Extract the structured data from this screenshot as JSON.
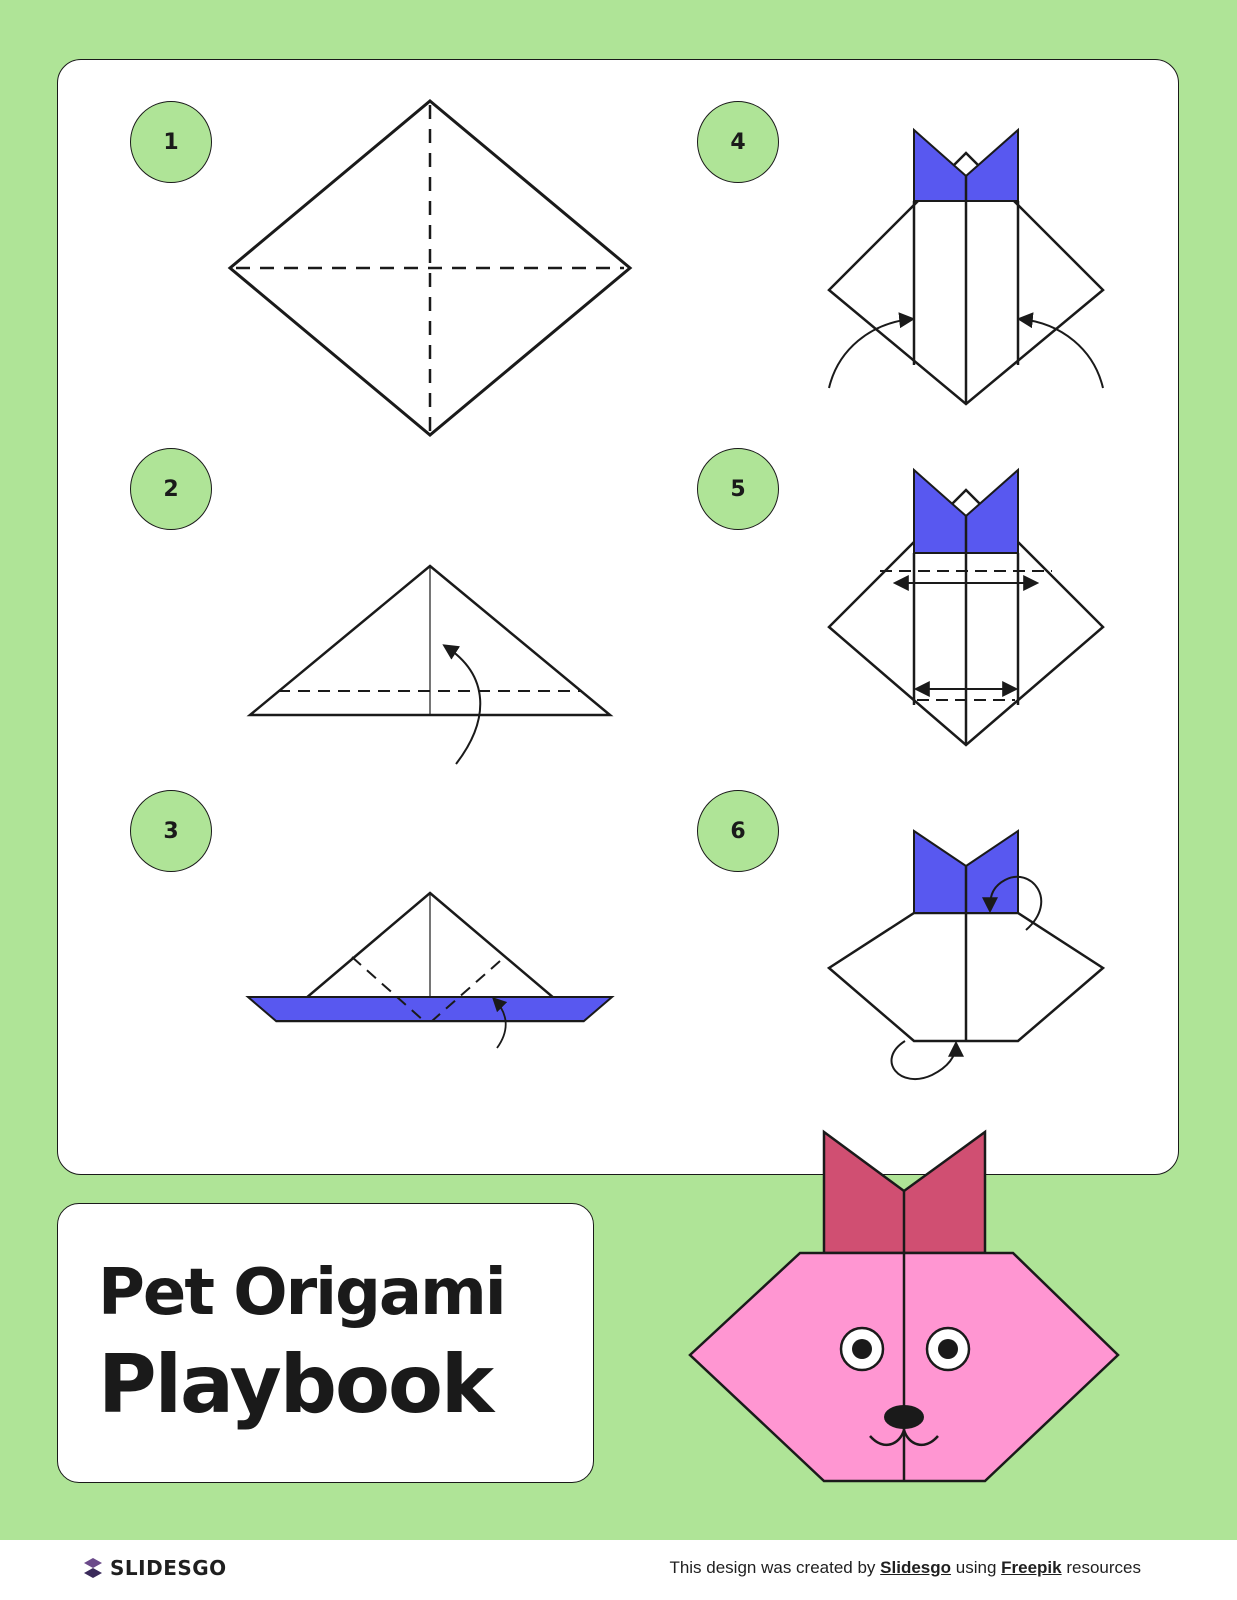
{
  "document": {
    "title_line1": "Pet Origami",
    "title_line2": "Playbook"
  },
  "steps": [
    {
      "number": "1"
    },
    {
      "number": "2"
    },
    {
      "number": "3"
    },
    {
      "number": "4"
    },
    {
      "number": "5"
    },
    {
      "number": "6"
    }
  ],
  "footer": {
    "brand": "SLIDESGO",
    "credit_prefix": "This design was created by",
    "credit_link1": "Slidesgo",
    "credit_middle": "using",
    "credit_link2": "Freepik",
    "credit_suffix": "resources"
  },
  "colors": {
    "background_green": "#afe497",
    "paper_blue": "#5858f0",
    "bow_red": "#d04f72",
    "face_pink": "#ff96d2",
    "ink": "#1a1a1a"
  }
}
